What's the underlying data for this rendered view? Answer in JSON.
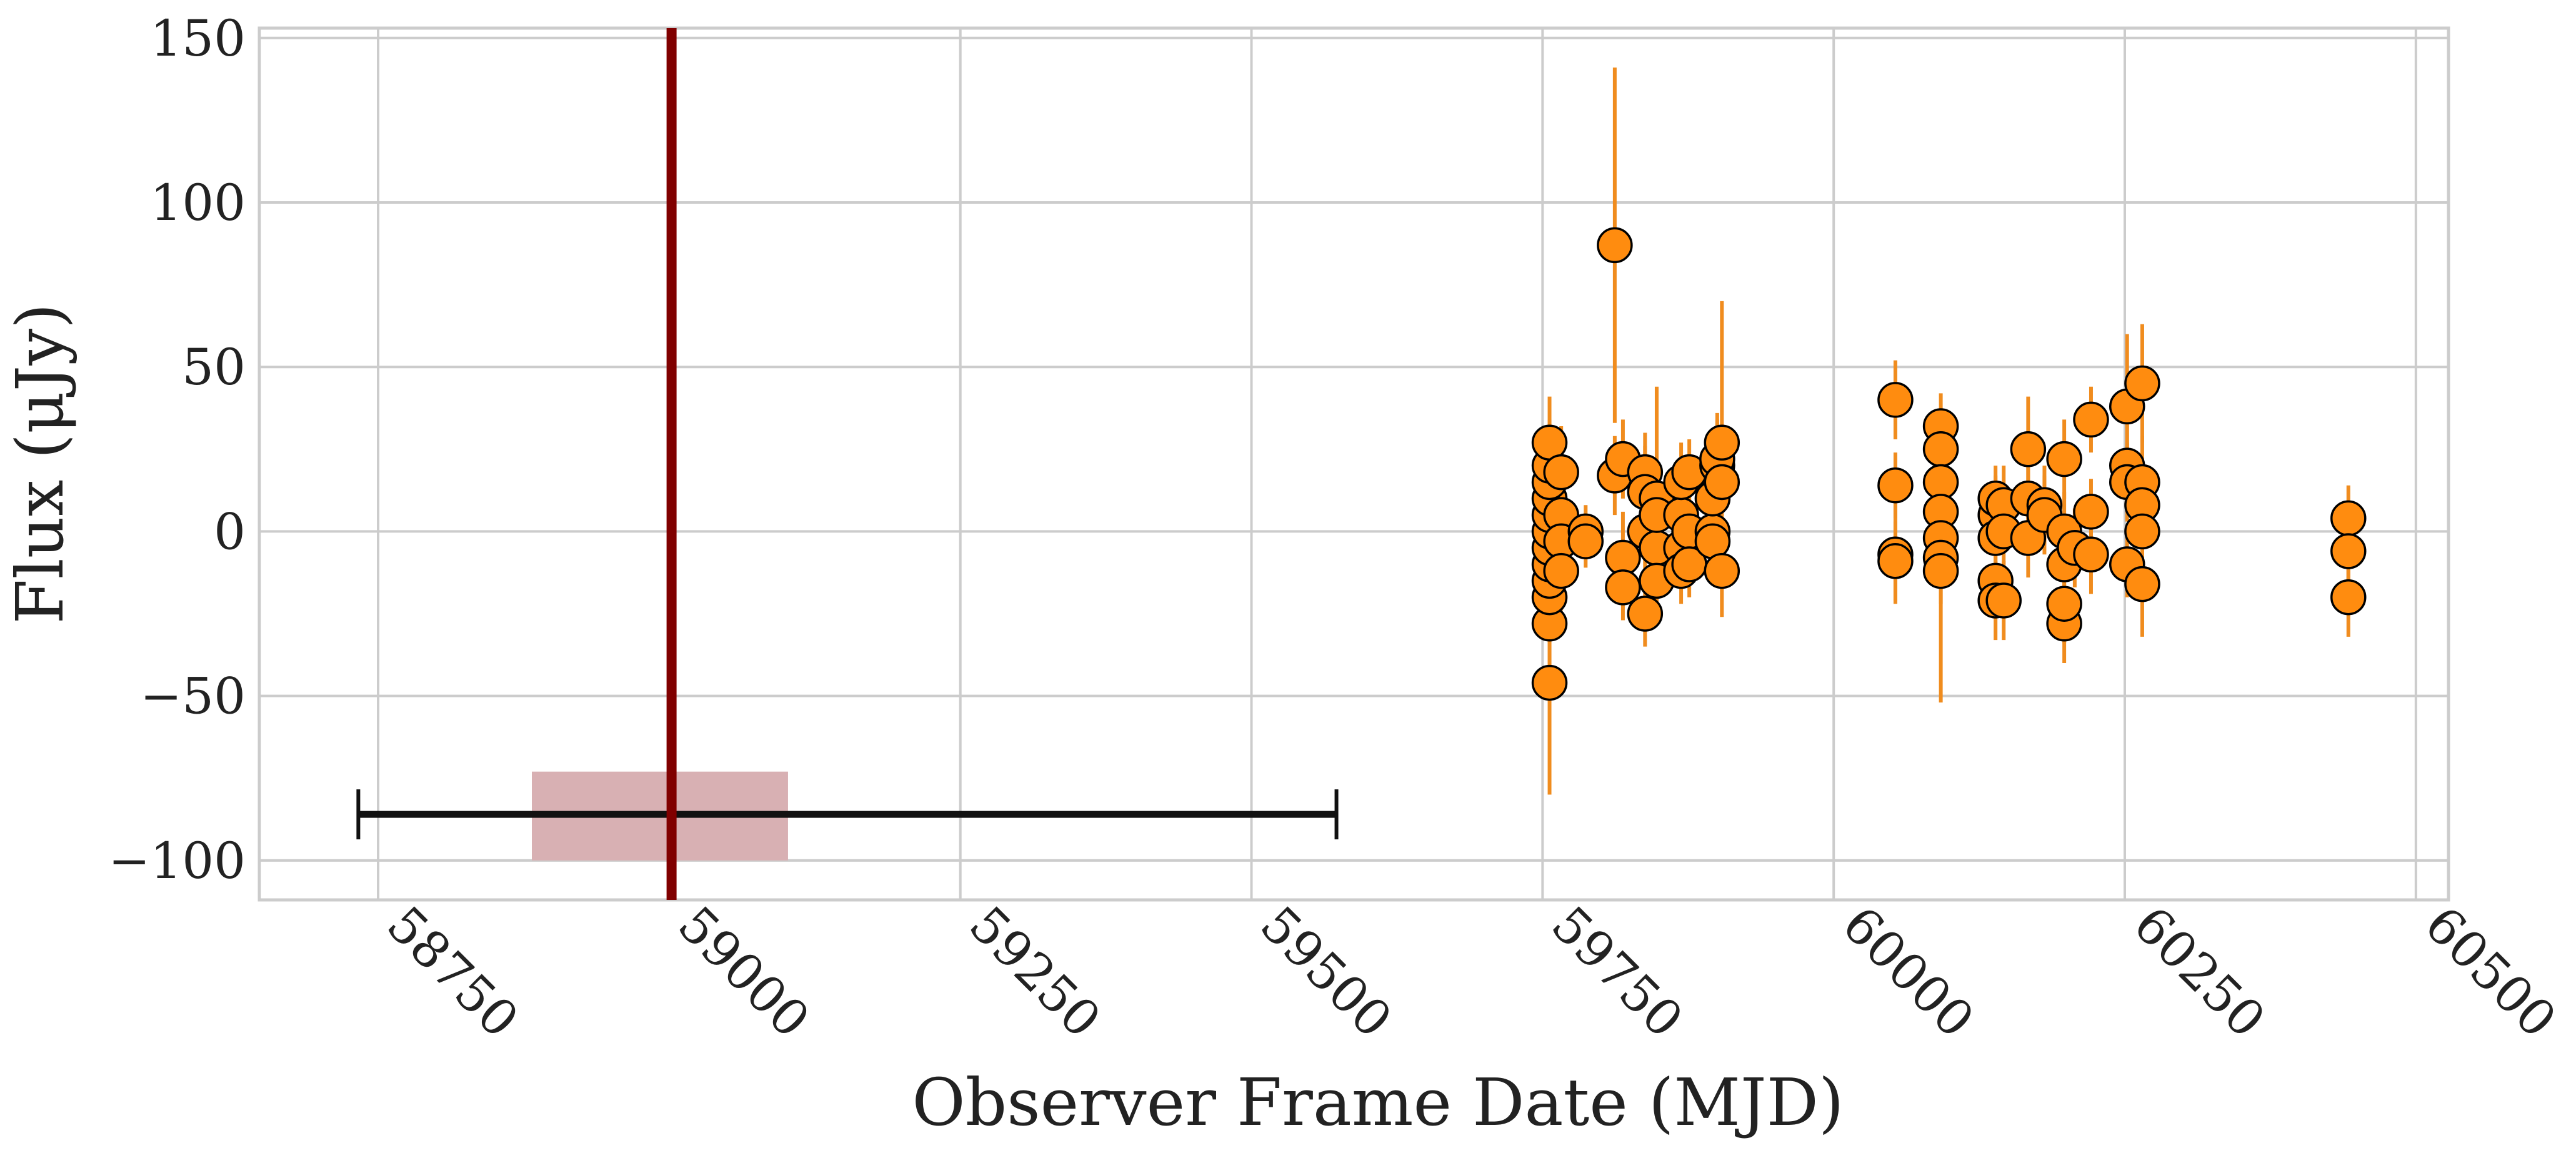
{
  "chart_data": {
    "type": "scatter",
    "xlabel": "Observer Frame Date (MJD)",
    "ylabel": "Flux (μJy)",
    "xlim": [
      58648,
      60528
    ],
    "ylim": [
      -112,
      153
    ],
    "xticks": [
      58750,
      59000,
      59250,
      59500,
      59750,
      60000,
      60250,
      60500
    ],
    "yticks": [
      {
        "value": -100,
        "label": "−100"
      },
      {
        "value": -50,
        "label": "−50"
      },
      0,
      50,
      100,
      150
    ],
    "grid": true,
    "color": "#ff8c0f",
    "edge_color": "#000000",
    "error_color": "#f08c1e",
    "x": [
      59756,
      59756,
      59756,
      59756,
      59756,
      59756,
      59756,
      59756,
      59756,
      59756,
      59756,
      59756,
      59766,
      59766,
      59766,
      59766,
      59787,
      59787,
      59812,
      59812,
      59819,
      59819,
      59819,
      59838,
      59838,
      59838,
      59838,
      59848,
      59848,
      59848,
      59848,
      59869,
      59869,
      59869,
      59869,
      59876,
      59876,
      59876,
      59896,
      59896,
      59896,
      59900,
      59900,
      59904,
      59904,
      59904,
      60053,
      60053,
      60053,
      60053,
      60092,
      60092,
      60092,
      60092,
      60092,
      60092,
      60092,
      60139,
      60139,
      60139,
      60139,
      60139,
      60146,
      60146,
      60146,
      60167,
      60167,
      60167,
      60181,
      60181,
      60198,
      60198,
      60198,
      60198,
      60198,
      60207,
      60221,
      60221,
      60221,
      60252,
      60252,
      60252,
      60252,
      60265,
      60265,
      60265,
      60265,
      60265,
      60442,
      60442,
      60442
    ],
    "values": [
      -46,
      -28,
      -20,
      -15,
      -10,
      -5,
      0,
      5,
      10,
      15,
      20,
      27,
      18,
      5,
      -3,
      -12,
      0,
      -3,
      87,
      17,
      22,
      -8,
      -17,
      18,
      0,
      -25,
      12,
      10,
      -5,
      -15,
      5,
      -5,
      5,
      -12,
      15,
      18,
      0,
      -10,
      0,
      -3,
      10,
      20,
      22,
      27,
      -12,
      15,
      40,
      14,
      -7,
      -9,
      32,
      25,
      15,
      6,
      -2,
      -8,
      -12,
      5,
      -2,
      -15,
      -21,
      10,
      8,
      0,
      -21,
      25,
      10,
      -2,
      8,
      5,
      22,
      -28,
      -22,
      -10,
      0,
      -5,
      34,
      6,
      -7,
      38,
      20,
      -10,
      15,
      45,
      15,
      8,
      0,
      -16,
      4,
      -6,
      -20
    ],
    "errors": [
      34,
      14,
      12,
      12,
      10,
      10,
      10,
      12,
      12,
      12,
      14,
      14,
      14,
      12,
      10,
      12,
      8,
      8,
      54,
      12,
      12,
      14,
      10,
      12,
      12,
      10,
      14,
      34,
      12,
      10,
      12,
      12,
      12,
      10,
      12,
      10,
      10,
      10,
      10,
      10,
      10,
      14,
      14,
      43,
      14,
      14,
      12,
      10,
      15,
      12,
      10,
      12,
      10,
      10,
      10,
      44,
      10,
      12,
      12,
      10,
      12,
      10,
      12,
      10,
      12,
      16,
      12,
      12,
      12,
      12,
      12,
      12,
      12,
      12,
      12,
      12,
      10,
      10,
      12,
      22,
      14,
      10,
      12,
      18,
      14,
      12,
      12,
      16,
      10,
      10,
      12
    ],
    "reference_line": {
      "x": 59002,
      "color": "#800000"
    },
    "shaded_region": {
      "xmin": 58882,
      "xmax": 59102,
      "ymin": -100,
      "ymax": -73,
      "color": "#d8b0b3"
    },
    "range_bar": {
      "xmin": 58733,
      "xmax": 59573,
      "y": -86,
      "color": "#111111"
    }
  }
}
